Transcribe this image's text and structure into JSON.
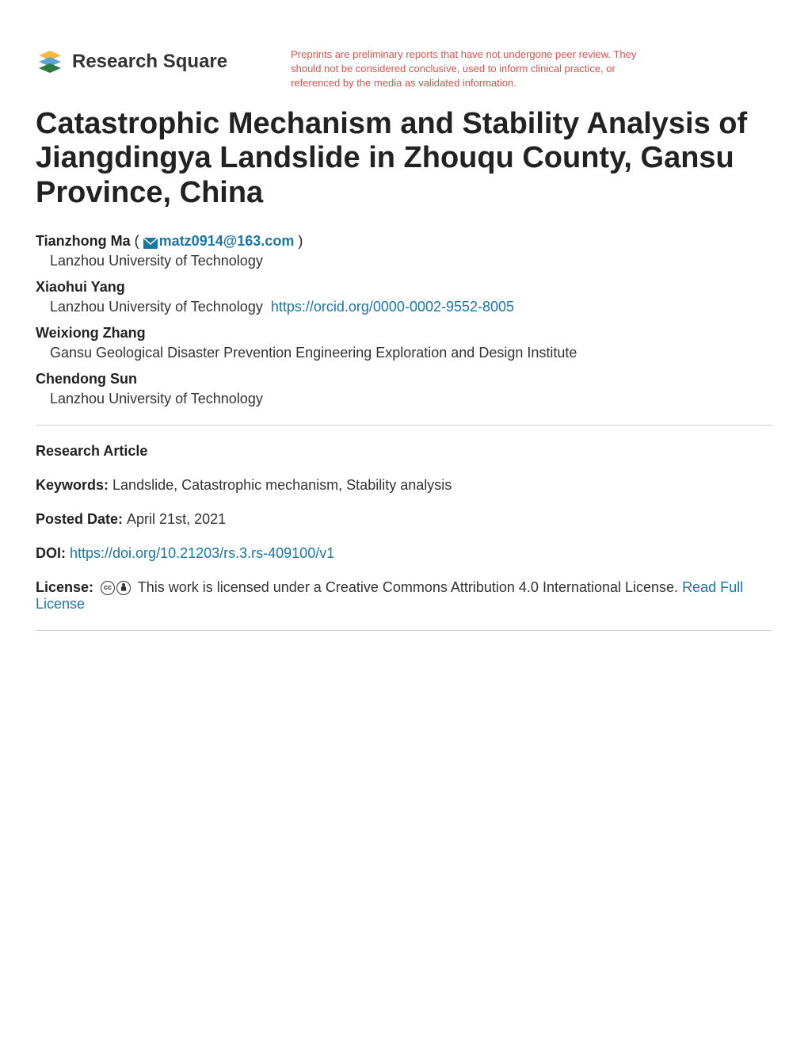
{
  "header": {
    "logo_text_1": "Research",
    "logo_text_2": " Square",
    "disclaimer": "Preprints are preliminary reports that have not undergone peer review. They should not be considered conclusive, used to inform clinical practice, or referenced by the media as validated information.",
    "logo_colors": {
      "top": "#5aa3d8",
      "mid": "#f5b942",
      "bot": "#2d7a3e"
    }
  },
  "title": "Catastrophic Mechanism and Stability Analysis of Jiangdingya Landslide in Zhouqu County, Gansu Province, China",
  "authors": [
    {
      "name": "Tianzhong Ma",
      "paren": "  ( ",
      "email": "matz0914@163.com",
      "paren_close": " )",
      "affiliation": "Lanzhou University of Technology",
      "orcid": ""
    },
    {
      "name": "Xiaohui Yang",
      "paren": "",
      "email": "",
      "paren_close": "",
      "affiliation": "Lanzhou University of Technology",
      "orcid": "https://orcid.org/0000-0002-9552-8005"
    },
    {
      "name": "Weixiong Zhang",
      "paren": "",
      "email": "",
      "paren_close": "",
      "affiliation": "Gansu Geological Disaster Prevention Engineering Exploration and Design Institute",
      "orcid": ""
    },
    {
      "name": "Chendong Sun",
      "paren": "",
      "email": "",
      "paren_close": "",
      "affiliation": "Lanzhou University of Technology",
      "orcid": ""
    }
  ],
  "meta": {
    "article_type": "Research Article",
    "keywords_label": "Keywords: ",
    "keywords": "Landslide, Catastrophic mechanism, Stability analysis",
    "posted_label": "Posted Date: ",
    "posted_date": "April 21st, 2021",
    "doi_label": "DOI: ",
    "doi": "https://doi.org/10.21203/rs.3.rs-409100/v1",
    "license_label": "License: ",
    "license_text": " This work is licensed under a Creative Commons Attribution 4.0 International License.  ",
    "read_full_license": "Read Full License",
    "cc_symbol": "cc",
    "by_symbol": "🅯"
  },
  "colors": {
    "text": "#222222",
    "link": "#1976a8",
    "disclaimer": "#d9534f",
    "divider": "#cccccc",
    "background": "#ffffff"
  }
}
